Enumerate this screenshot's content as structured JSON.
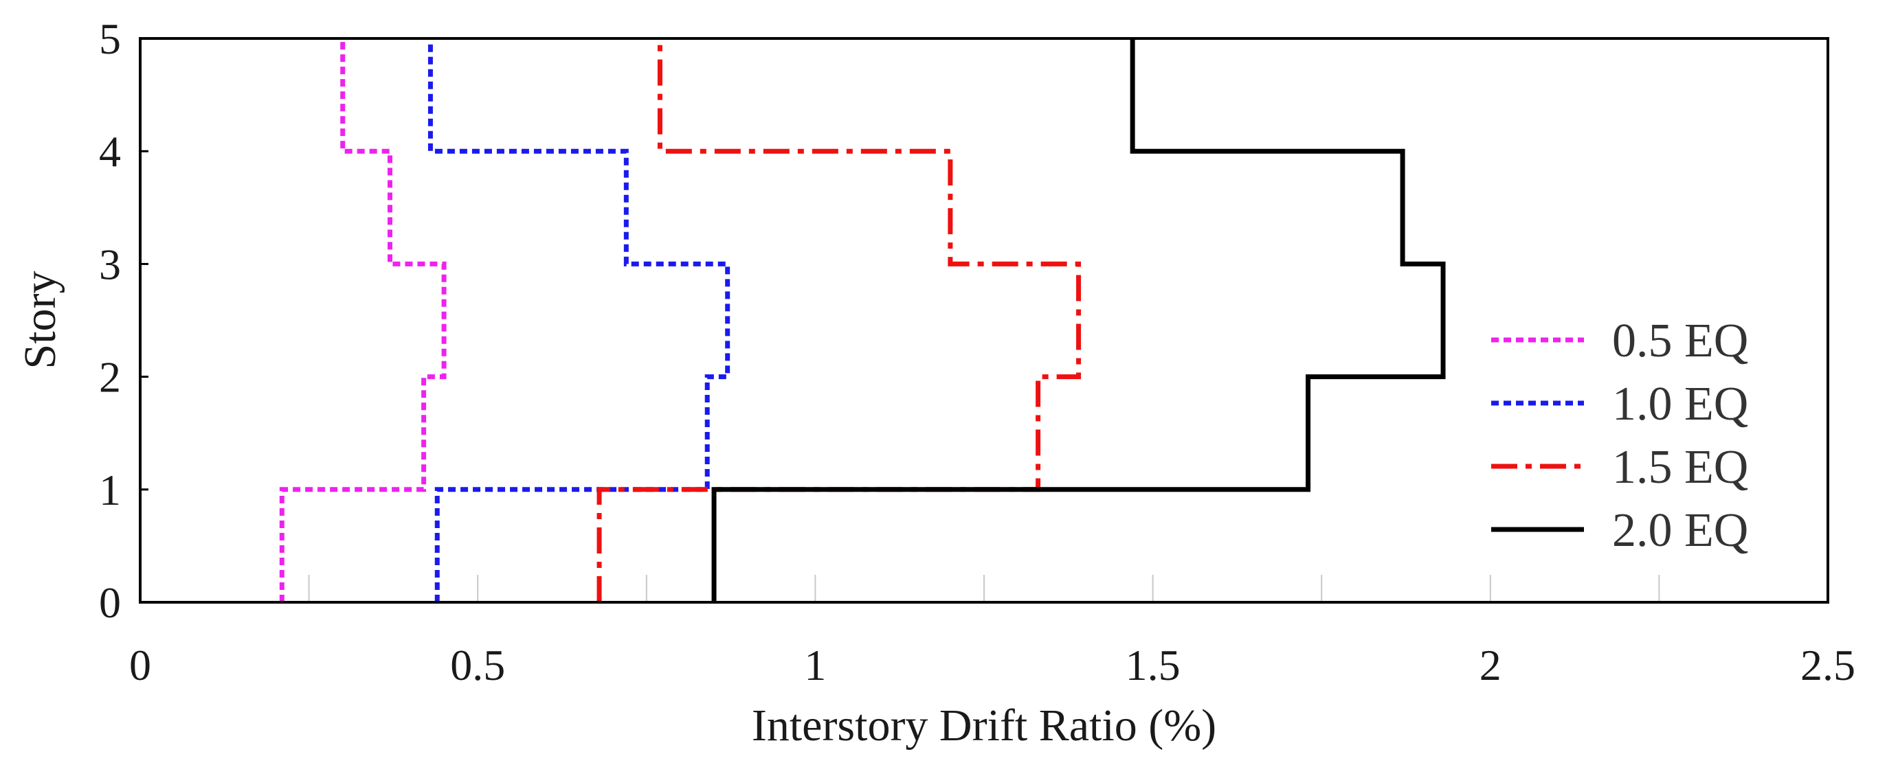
{
  "chart_data": {
    "type": "line",
    "step": true,
    "xlabel": "Interstory Drift Ratio (%)",
    "ylabel": "Story",
    "xlim": [
      0,
      2.5
    ],
    "ylim": [
      0,
      5
    ],
    "x_ticks": [
      "0",
      "0.5",
      "1",
      "1.5",
      "2",
      "2.5"
    ],
    "y_ticks": [
      "0",
      "1",
      "2",
      "3",
      "4",
      "5"
    ],
    "stories": [
      1,
      2,
      3,
      4,
      5
    ],
    "legend_position": "right",
    "series": [
      {
        "name": "0.5 EQ",
        "color": "#ee22ee",
        "dash": "dotted",
        "values": [
          0.21,
          0.42,
          0.45,
          0.37,
          0.3
        ]
      },
      {
        "name": "1.0 EQ",
        "color": "#1a1aee",
        "dash": "dotted",
        "values": [
          0.44,
          0.84,
          0.87,
          0.72,
          0.43
        ]
      },
      {
        "name": "1.5 EQ",
        "color": "#ee1111",
        "dash": "dashdot",
        "values": [
          0.68,
          1.33,
          1.39,
          1.2,
          0.77
        ]
      },
      {
        "name": "2.0 EQ",
        "color": "#000000",
        "dash": "solid",
        "values": [
          0.85,
          1.73,
          1.93,
          1.87,
          1.47
        ]
      }
    ]
  }
}
